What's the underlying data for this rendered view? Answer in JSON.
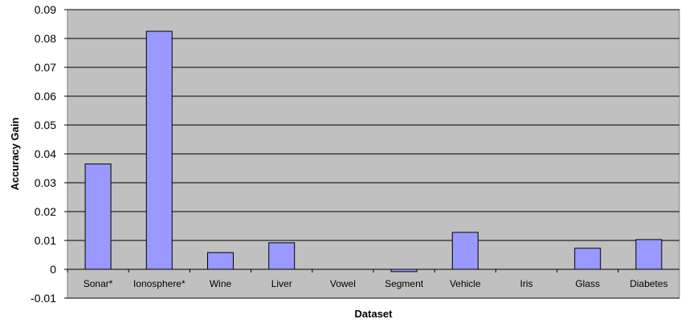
{
  "chart_data": {
    "type": "bar",
    "xlabel": "Dataset",
    "ylabel": "Accuracy Gain",
    "categories": [
      "Sonar*",
      "Ionosphere*",
      "Wine",
      "Liver",
      "Vowel",
      "Segment",
      "Vehicle",
      "Iris",
      "Glass",
      "Diabetes"
    ],
    "values": [
      0.0365,
      0.0825,
      0.0058,
      0.0092,
      0.0,
      -0.0008,
      0.0128,
      0.0,
      0.0073,
      0.0103
    ],
    "ylim": [
      -0.01,
      0.09
    ],
    "yticks": [
      "-0.01",
      "0",
      "0.01",
      "0.02",
      "0.03",
      "0.04",
      "0.05",
      "0.06",
      "0.07",
      "0.08",
      "0.09"
    ],
    "grid": true,
    "legend": "none",
    "colors": {
      "bar": "#9999ff",
      "bar_stroke": "#000000",
      "plot_bg": "#c0c0c0",
      "grid": "#000000"
    }
  }
}
